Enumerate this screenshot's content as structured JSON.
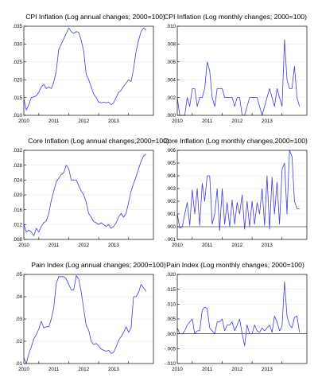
{
  "chart_data": [
    {
      "type": "line",
      "title": "CPI Inflation (Log annual changes; 2000=100)",
      "x_tick_labels": [
        "2010",
        "2011",
        "2012",
        "2013"
      ],
      "xlim": [
        2009.5,
        2013.83
      ],
      "ylim": [
        0.01,
        0.035
      ],
      "y_ticks": [
        0.01,
        0.015,
        0.02,
        0.025,
        0.03,
        0.035
      ],
      "y_tick_labels": [
        ".010",
        ".015",
        ".020",
        ".025",
        ".030",
        ".035"
      ],
      "zero_line": false,
      "series": [
        {
          "values": [
            0.0145,
            0.0115,
            0.013,
            0.015,
            0.0152,
            0.0155,
            0.0165,
            0.018,
            0.0187,
            0.0175,
            0.018,
            0.0175,
            0.0193,
            0.0225,
            0.0285,
            0.03,
            0.0315,
            0.033,
            0.0345,
            0.0335,
            0.033,
            0.0335,
            0.0333,
            0.031,
            0.028,
            0.0215,
            0.02,
            0.018,
            0.016,
            0.015,
            0.0137,
            0.0135,
            0.0137,
            0.0135,
            0.0137,
            0.013,
            0.0135,
            0.015,
            0.0165,
            0.017,
            0.0182,
            0.019,
            0.02,
            0.0195,
            0.023,
            0.028,
            0.031,
            0.0335,
            0.0345,
            0.034
          ]
        }
      ]
    },
    {
      "type": "line",
      "title": "CPI Inflation (Log monthly changes; 2000=100)",
      "x_tick_labels": [
        "2010",
        "2011",
        "2012",
        "2013"
      ],
      "xlim": [
        2009.5,
        2013.83
      ],
      "ylim": [
        0.0,
        0.01
      ],
      "y_ticks": [
        0.0,
        0.002,
        0.004,
        0.006,
        0.008,
        0.01
      ],
      "y_tick_labels": [
        ".000",
        ".002",
        ".004",
        ".006",
        ".008",
        ".010"
      ],
      "zero_line": false,
      "series": [
        {
          "values": [
            0.002,
            0.0,
            0.0,
            0.0,
            0.002,
            0.001,
            0.003,
            0.003,
            0.001,
            0.002,
            0.002,
            0.003,
            0.006,
            0.005,
            0.002,
            0.001,
            0.003,
            0.003,
            0.003,
            0.002,
            0.002,
            0.002,
            0.002,
            0.001,
            0.002,
            0.002,
            0.0,
            0.0,
            0.001,
            0.002,
            0.002,
            0.002,
            0.002,
            0.001,
            0.0,
            0.001,
            0.002,
            0.003,
            0.002,
            0.001,
            0.003,
            0.002,
            0.001,
            0.0085,
            0.004,
            0.003,
            0.003,
            0.0055,
            0.002,
            0.001
          ]
        }
      ]
    },
    {
      "type": "line",
      "title": "Core Inflation (Log annual changes,2000=100)",
      "x_tick_labels": [
        "2010",
        "2011",
        "2012",
        "2013"
      ],
      "xlim": [
        2009.5,
        2013.83
      ],
      "ylim": [
        0.008,
        0.032
      ],
      "y_ticks": [
        0.008,
        0.012,
        0.016,
        0.02,
        0.024,
        0.028,
        0.032
      ],
      "y_tick_labels": [
        ".008",
        ".012",
        ".016",
        ".020",
        ".024",
        ".028",
        ".032"
      ],
      "zero_line": false,
      "series": [
        {
          "values": [
            0.012,
            0.01,
            0.0105,
            0.01,
            0.009,
            0.011,
            0.01,
            0.0115,
            0.0125,
            0.013,
            0.015,
            0.0185,
            0.021,
            0.0235,
            0.0245,
            0.0255,
            0.026,
            0.028,
            0.027,
            0.024,
            0.024,
            0.024,
            0.0225,
            0.021,
            0.02,
            0.018,
            0.015,
            0.014,
            0.0128,
            0.0125,
            0.012,
            0.0125,
            0.012,
            0.0115,
            0.012,
            0.011,
            0.0115,
            0.0125,
            0.014,
            0.015,
            0.014,
            0.015,
            0.018,
            0.021,
            0.023,
            0.025,
            0.027,
            0.029,
            0.0305,
            0.031
          ]
        }
      ]
    },
    {
      "type": "line",
      "title": "Core Inflation (Log monthly changes,2000=100)",
      "x_tick_labels": [
        "2010",
        "2011",
        "2012",
        "2013"
      ],
      "xlim": [
        2009.5,
        2013.83
      ],
      "ylim": [
        -0.001,
        0.006
      ],
      "y_ticks": [
        -0.001,
        0.0,
        0.001,
        0.002,
        0.003,
        0.004,
        0.005,
        0.006
      ],
      "y_tick_labels": [
        "-.001",
        ".000",
        ".001",
        ".002",
        ".003",
        ".004",
        ".005",
        ".006"
      ],
      "zero_line": true,
      "series": [
        {
          "values": [
            0.001,
            -0.0001,
            0.0,
            0.001,
            0.0019,
            0.0001,
            0.0029,
            0.001,
            0.003,
            0.0001,
            0.0034,
            0.002,
            0.004,
            0.004,
            0.0002,
            0.001,
            0.003,
            -0.0003,
            0.003,
            0.0002,
            0.0019,
            0.0,
            0.0021,
            0.0002,
            0.0019,
            0.001,
            0.0025,
            -0.0002,
            0.002,
            0.0,
            0.002,
            0.0002,
            0.0019,
            0.001,
            0.003,
            0.0001,
            0.004,
            -0.0002,
            0.0039,
            0.001,
            0.0035,
            0.0002,
            0.0045,
            0.005,
            0.001,
            0.006,
            0.0055,
            0.002,
            0.0014,
            0.0014
          ]
        }
      ]
    },
    {
      "type": "line",
      "title": "Pain Index (Log annual changes; 2000=100)",
      "x_tick_labels": [
        "2010",
        "2011",
        "2012",
        "2013"
      ],
      "xlim": [
        2009.5,
        2013.83
      ],
      "ylim": [
        0.01,
        0.05
      ],
      "y_ticks": [
        0.01,
        0.02,
        0.03,
        0.04,
        0.05
      ],
      "y_tick_labels": [
        ".01",
        ".02",
        ".03",
        ".04",
        ".05"
      ],
      "zero_line": false,
      "series": [
        {
          "values": [
            0.0125,
            0.01,
            0.0145,
            0.0175,
            0.021,
            0.023,
            0.0255,
            0.029,
            0.026,
            0.0265,
            0.0265,
            0.03,
            0.035,
            0.046,
            0.049,
            0.049,
            0.049,
            0.048,
            0.0455,
            0.043,
            0.043,
            0.0495,
            0.048,
            0.042,
            0.0345,
            0.027,
            0.025,
            0.02,
            0.0185,
            0.019,
            0.018,
            0.0165,
            0.016,
            0.0155,
            0.016,
            0.0145,
            0.015,
            0.0175,
            0.0205,
            0.022,
            0.024,
            0.0265,
            0.024,
            0.026,
            0.04,
            0.04,
            0.042,
            0.0455,
            0.044,
            0.0425
          ]
        }
      ]
    },
    {
      "type": "line",
      "title": "Pain Index (Log monthly changes; 2000=100)",
      "x_tick_labels": [
        "2010",
        "2011",
        "2012",
        "2013"
      ],
      "xlim": [
        2009.5,
        2013.83
      ],
      "ylim": [
        -0.01,
        0.02
      ],
      "y_ticks": [
        -0.01,
        -0.005,
        0.0,
        0.005,
        0.01,
        0.015,
        0.02
      ],
      "y_tick_labels": [
        "-.010",
        "-.005",
        ".000",
        ".005",
        ".010",
        ".015",
        ".020"
      ],
      "zero_line": true,
      "series": [
        {
          "values": [
            0.002,
            0.0,
            0.0,
            0.001,
            0.003,
            0.004,
            0.005,
            0.0,
            0.001,
            0.001,
            0.008,
            0.009,
            0.0085,
            0.002,
            0.001,
            0.0,
            0.004,
            0.004,
            0.005,
            0.001,
            0.003,
            0.003,
            0.004,
            0.001,
            0.003,
            0.005,
            0.0,
            -0.004,
            0.003,
            0.0,
            0.0,
            0.003,
            0.001,
            0.0005,
            0.002,
            0.001,
            0.002,
            0.003,
            0.0005,
            0.006,
            0.004,
            0.001,
            0.0025,
            0.0175,
            0.006,
            0.003,
            0.002,
            0.0055,
            0.006,
            0.0005
          ]
        }
      ]
    }
  ]
}
